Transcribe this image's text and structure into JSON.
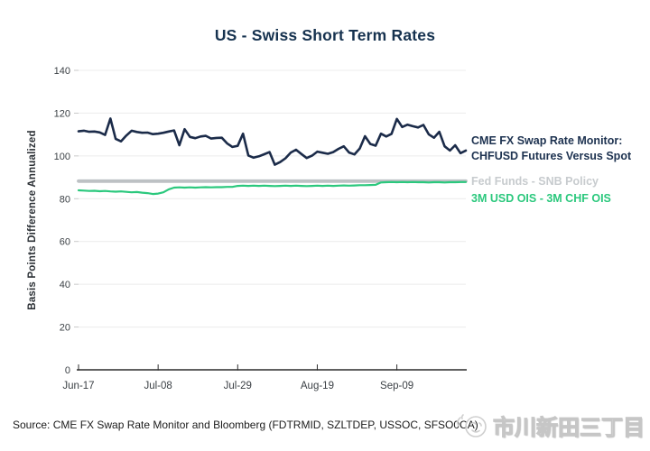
{
  "title": "US - Swiss Short Term Rates",
  "source_note": "Source: CME FX Swap Rate Monitor and Bloomberg (FDTRMID, SZLTDEP, USSOC, SFSO0CA)",
  "watermark_text": "市川新田三丁目",
  "colors": {
    "navy_line": "#1b2b49",
    "green_line": "#2bc87d",
    "gray_line": "#bdc1c4",
    "grid": "#ececec",
    "axis": "#2c2c2c",
    "tick_label": "#3b4045",
    "title_text": "#16324f",
    "legend_gray_text": "#c7cbce",
    "watermark_gray": "#d8d8d8"
  },
  "legend": {
    "series1_line1": "CME FX Swap Rate Monitor:",
    "series1_line2": "CHFUSD Futures Versus Spot",
    "series2": "Fed Funds - SNB Policy",
    "series3": "3M USD OIS - 3M CHF OIS"
  },
  "chart_data": {
    "type": "line",
    "title": "US - Swiss Short Term Rates",
    "xlabel": "",
    "ylabel": "Basis Points Difference Annualized",
    "ylim": [
      0,
      140
    ],
    "y_ticks": [
      0,
      20,
      40,
      60,
      80,
      100,
      120,
      140
    ],
    "x_tick_labels": [
      "Jun-17",
      "Jul-08",
      "Jul-29",
      "Aug-19",
      "Sep-09"
    ],
    "x_tick_indices": [
      0,
      15,
      30,
      45,
      60
    ],
    "n_points": 74,
    "grid": "horizontal-only",
    "legend_position": "right-of-plot",
    "grid_color": "#ececec",
    "axis_color": "#2c2c2c",
    "tick_color": "#3b4045",
    "series": [
      {
        "id": "fed-funds-snb-policy",
        "name": "Fed Funds - SNB Policy",
        "color": "#bdc1c4",
        "width": 3.8,
        "constant": 88.2
      },
      {
        "id": "usd-ois-minus-chf-ois",
        "name": "3M USD OIS - 3M CHF OIS",
        "color": "#2bc87d",
        "width": 2.2,
        "values": [
          83.9,
          83.8,
          83.6,
          83.7,
          83.5,
          83.6,
          83.4,
          83.3,
          83.4,
          83.2,
          83.0,
          83.1,
          82.8,
          82.6,
          82.2,
          82.4,
          83.0,
          84.4,
          85.2,
          85.3,
          85.2,
          85.3,
          85.2,
          85.3,
          85.4,
          85.3,
          85.4,
          85.4,
          85.5,
          85.5,
          86.0,
          86.1,
          86.0,
          86.1,
          86.0,
          86.1,
          86.0,
          85.9,
          86.0,
          86.1,
          86.0,
          86.1,
          86.0,
          85.9,
          86.0,
          86.1,
          86.0,
          86.1,
          86.0,
          86.1,
          86.2,
          86.1,
          86.2,
          86.3,
          86.3,
          86.4,
          86.5,
          87.6,
          87.7,
          87.8,
          87.7,
          87.8,
          87.7,
          87.8,
          87.7,
          87.7,
          87.6,
          87.7,
          87.7,
          87.6,
          87.7,
          87.7,
          87.8,
          87.8
        ]
      },
      {
        "id": "chfusd-futures-versus-spot",
        "name": "CME FX Swap Rate Monitor: CHFUSD Futures Versus Spot",
        "color": "#1b2b49",
        "width": 2.6,
        "values": [
          111.5,
          111.8,
          111.3,
          111.4,
          111.0,
          109.8,
          117.5,
          108.0,
          106.8,
          109.5,
          111.8,
          111.2,
          110.8,
          110.9,
          110.2,
          110.4,
          110.8,
          111.4,
          111.9,
          105.0,
          112.5,
          108.9,
          108.3,
          109.1,
          109.4,
          108.1,
          108.4,
          108.5,
          105.9,
          104.2,
          104.7,
          110.4,
          100.2,
          99.2,
          99.8,
          100.8,
          101.8,
          95.9,
          97.1,
          98.9,
          101.6,
          102.9,
          100.9,
          99.0,
          100.1,
          102.0,
          101.5,
          101.0,
          101.8,
          103.3,
          104.5,
          101.6,
          100.7,
          103.5,
          109.2,
          105.6,
          104.8,
          110.4,
          109.1,
          110.3,
          117.3,
          113.5,
          114.6,
          113.9,
          113.3,
          114.5,
          110.1,
          108.5,
          111.3,
          104.5,
          102.5,
          105.0,
          101.3,
          102.5
        ]
      }
    ]
  }
}
